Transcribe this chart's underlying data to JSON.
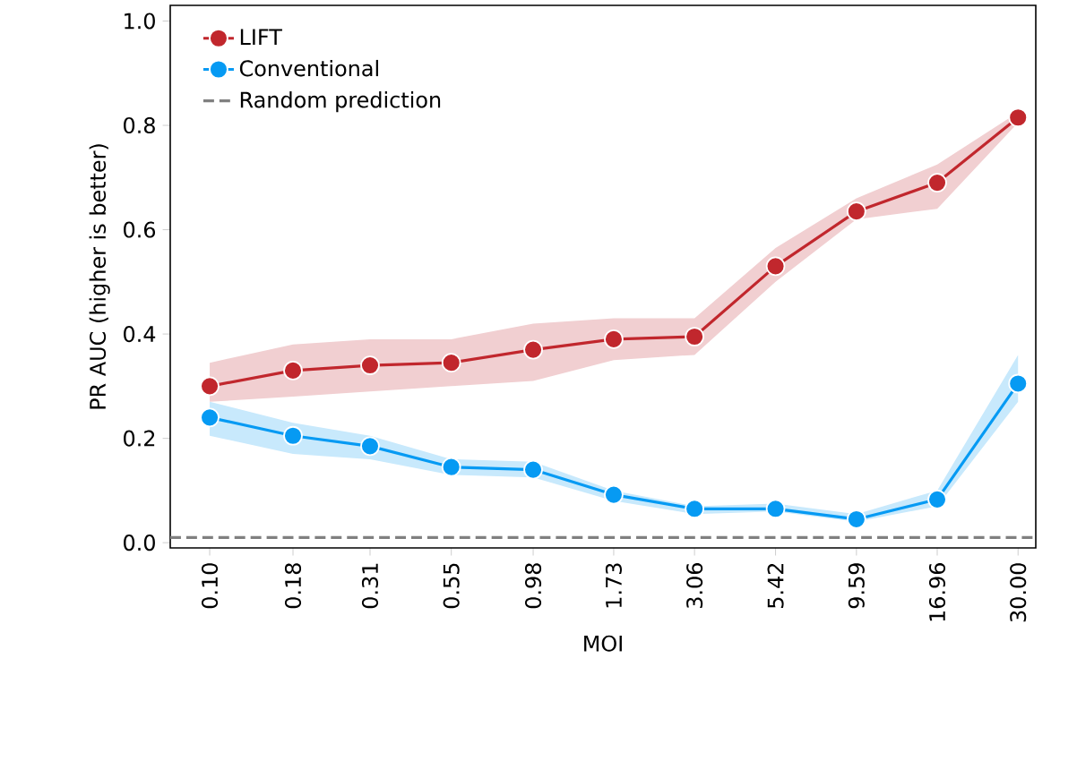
{
  "chart_data": {
    "type": "line",
    "xlabel": "MOI",
    "ylabel": "PR AUC (higher is better)",
    "log": "x",
    "x": [
      0.1,
      0.18,
      0.31,
      0.55,
      0.98,
      1.73,
      3.06,
      5.42,
      9.59,
      16.96,
      30.0
    ],
    "series": [
      {
        "name": "LIFT",
        "color": "#c1272d",
        "values": [
          0.3,
          0.33,
          0.34,
          0.345,
          0.37,
          0.39,
          0.395,
          0.53,
          0.635,
          0.69,
          0.815
        ],
        "lower": [
          0.27,
          0.28,
          0.29,
          0.3,
          0.31,
          0.35,
          0.36,
          0.5,
          0.62,
          0.64,
          0.805
        ],
        "upper": [
          0.345,
          0.38,
          0.39,
          0.39,
          0.42,
          0.43,
          0.43,
          0.565,
          0.66,
          0.725,
          0.825
        ]
      },
      {
        "name": "Conventional",
        "color": "#069af3",
        "values": [
          0.24,
          0.205,
          0.185,
          0.145,
          0.14,
          0.092,
          0.065,
          0.065,
          0.045,
          0.083,
          0.305
        ],
        "lower": [
          0.205,
          0.17,
          0.16,
          0.13,
          0.125,
          0.08,
          0.055,
          0.06,
          0.04,
          0.07,
          0.27
        ],
        "upper": [
          0.27,
          0.23,
          0.205,
          0.16,
          0.155,
          0.1,
          0.07,
          0.075,
          0.055,
          0.1,
          0.36
        ]
      }
    ],
    "ref_lines": [
      {
        "axis": "y",
        "value": 0.01,
        "label": "Random prediction",
        "color": "#808080",
        "line_style": "dashed"
      }
    ],
    "xlim": [
      0.0757,
      34
    ],
    "xticks": [
      {
        "value": 0.1,
        "label": "0.10"
      },
      {
        "value": 0.18,
        "label": "0.18"
      },
      {
        "value": 0.31,
        "label": "0.31"
      },
      {
        "value": 0.55,
        "label": "0.55"
      },
      {
        "value": 0.98,
        "label": "0.98"
      },
      {
        "value": 1.73,
        "label": "1.73"
      },
      {
        "value": 3.06,
        "label": "3.06"
      },
      {
        "value": 5.42,
        "label": "5.42"
      },
      {
        "value": 9.59,
        "label": "9.59"
      },
      {
        "value": 16.96,
        "label": "16.96"
      },
      {
        "value": 30.0,
        "label": "30.00"
      }
    ],
    "ylim": [
      -0.01,
      1.03
    ],
    "yticks": [
      {
        "value": 0,
        "label": "0.0"
      },
      {
        "value": 0.2,
        "label": "0.2"
      },
      {
        "value": 0.4,
        "label": "0.4"
      },
      {
        "value": 0.6,
        "label": "0.6"
      },
      {
        "value": 0.8,
        "label": "0.8"
      },
      {
        "value": 1.0,
        "label": "1.0"
      }
    ],
    "grid": false,
    "legend": "top left",
    "marker": "circle",
    "line_style": "solid"
  }
}
